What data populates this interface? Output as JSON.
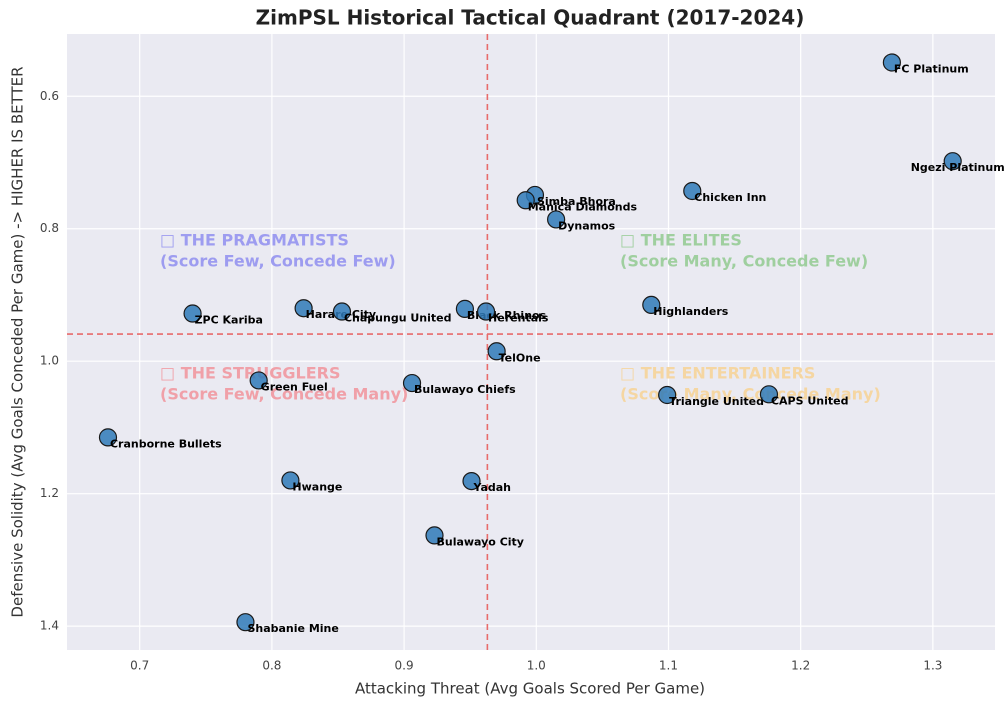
{
  "chart_data": {
    "type": "scatter",
    "title": "ZimPSL Historical Tactical Quadrant (2017-2024)",
    "x_label": "Attacking Threat (Avg Goals Scored Per Game)",
    "y_label": "Defensive Solidity (Avg Goals Conceded Per Game) -> HIGHER IS BETTER",
    "categories": [
      "FC Platinum",
      "Ngezi Platinum",
      "Chicken Inn",
      "Simba Bhora",
      "Manica Diamonds",
      "Dynamos",
      "Highlanders",
      "Black Rhinos",
      "Herentals",
      "Harare City",
      "Chapungu United",
      "ZPC Kariba",
      "TelOne",
      "Green Fuel",
      "Bulawayo Chiefs",
      "Triangle United",
      "CAPS United",
      "Cranborne Bullets",
      "Hwange",
      "Yadah",
      "Bulawayo City",
      "Shabanie Mine"
    ],
    "x": [
      1.269,
      1.315,
      1.118,
      0.999,
      0.992,
      1.015,
      1.087,
      0.946,
      0.962,
      0.824,
      0.853,
      0.74,
      0.97,
      0.79,
      0.906,
      1.099,
      1.176,
      0.676,
      0.814,
      0.951,
      0.923,
      0.78
    ],
    "values": [
      0.549,
      0.698,
      0.743,
      0.749,
      0.757,
      0.786,
      0.915,
      0.921,
      0.925,
      0.92,
      0.925,
      0.928,
      0.985,
      1.029,
      1.033,
      1.051,
      1.05,
      1.115,
      1.18,
      1.181,
      1.263,
      1.394
    ],
    "color": "#2f7ab8",
    "xlim": [
      0.645,
      1.347
    ],
    "ylim": [
      0.506,
      1.436
    ],
    "y_inverted": true,
    "xticks": [
      0.7,
      0.8,
      0.9,
      {
        "value": 1.0,
        "label": "1.0"
      },
      1.1,
      1.2,
      1.3
    ],
    "yticks": [
      0.6,
      0.8,
      {
        "value": 1.0,
        "label": "1.0"
      },
      1.2,
      1.4
    ],
    "grid": true,
    "reference_lines": {
      "x": 0.963,
      "y": 0.959,
      "color": "#e86b6b"
    },
    "annotations": [
      {
        "lines": [
          "□ THE PRAGMATISTS",
          "(Score Few, Concede Few)"
        ],
        "color": "#9d9cf0"
      },
      {
        "lines": [
          "□ THE ELITES",
          "(Score Many, Concede Few)"
        ],
        "color": "#9fcf9f"
      },
      {
        "lines": [
          "□ THE STRUGGLERS",
          "(Score Few, Concede Many)"
        ],
        "color": "#f0a0a8"
      },
      {
        "lines": [
          "□ THE ENTERTAINERS",
          "(Score Many, Concede Many)"
        ],
        "color": "#f5d6a2"
      }
    ]
  }
}
